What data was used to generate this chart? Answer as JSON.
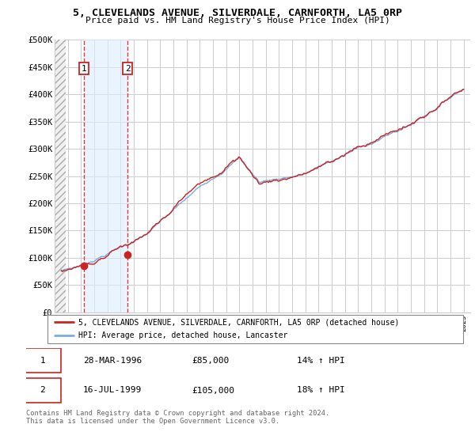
{
  "title": "5, CLEVELANDS AVENUE, SILVERDALE, CARNFORTH, LA5 0RP",
  "subtitle": "Price paid vs. HM Land Registry's House Price Index (HPI)",
  "ylabel_values": [
    "£0",
    "£50K",
    "£100K",
    "£150K",
    "£200K",
    "£250K",
    "£300K",
    "£350K",
    "£400K",
    "£450K",
    "£500K"
  ],
  "y_ticks": [
    0,
    50000,
    100000,
    150000,
    200000,
    250000,
    300000,
    350000,
    400000,
    450000,
    500000
  ],
  "xlim_start": 1994.0,
  "xlim_end": 2025.5,
  "ylim_min": 0,
  "ylim_max": 500000,
  "hpi_color": "#7aade0",
  "price_color": "#cc2222",
  "sale1_date": 1996.23,
  "sale1_price": 85000,
  "sale1_label": "1",
  "sale2_date": 1999.54,
  "sale2_price": 105000,
  "sale2_label": "2",
  "legend_line1": "5, CLEVELANDS AVENUE, SILVERDALE, CARNFORTH, LA5 0RP (detached house)",
  "legend_line2": "HPI: Average price, detached house, Lancaster",
  "table_row1": [
    "1",
    "28-MAR-1996",
    "£85,000",
    "14% ↑ HPI"
  ],
  "table_row2": [
    "2",
    "16-JUL-1999",
    "£105,000",
    "18% ↑ HPI"
  ],
  "footer": "Contains HM Land Registry data © Crown copyright and database right 2024.\nThis data is licensed under the Open Government Licence v3.0.",
  "sale_region_color": "#ddeeff",
  "grid_color": "#cccccc",
  "hatch_color": "#d0d0d0"
}
